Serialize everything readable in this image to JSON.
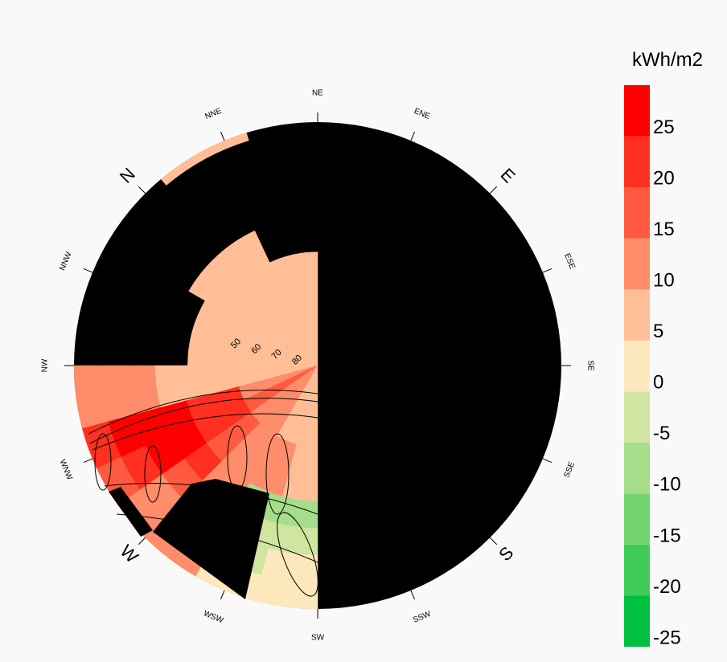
{
  "chart_data": {
    "type": "polar_heatmap",
    "legend_title": "kWh/m2",
    "colorbar": {
      "bins": [
        -25,
        -20,
        -15,
        -10,
        -5,
        0,
        5,
        10,
        15,
        20,
        25,
        30
      ],
      "colors": [
        "#00c040",
        "#3fcb55",
        "#72d46e",
        "#a6dd8a",
        "#cfe5a0",
        "#fde8bd",
        "#ffbe96",
        "#ff8c6a",
        "#ff5a40",
        "#ff3020",
        "#ff0000"
      ],
      "ylim": [
        -25,
        30
      ],
      "yticks": [
        -25,
        -20,
        -15,
        -10,
        -5,
        0,
        5,
        10,
        15,
        20,
        25
      ]
    },
    "directions": [
      "N",
      "NNE",
      "NE",
      "ENE",
      "E",
      "ESE",
      "SE",
      "SSE",
      "S",
      "SSW",
      "SW",
      "WSW",
      "W",
      "WNW",
      "NW",
      "NNW"
    ],
    "altitude_labels": [
      50,
      60,
      70,
      80
    ],
    "cells": [
      {
        "az": [
          300,
          315
        ],
        "alt": [
          0,
          10
        ],
        "value": 10
      },
      {
        "az": [
          300,
          315
        ],
        "alt": [
          10,
          20
        ],
        "value": 10
      },
      {
        "az": [
          300,
          315
        ],
        "alt": [
          20,
          30
        ],
        "value": 12
      },
      {
        "az": [
          300,
          315
        ],
        "alt": [
          30,
          40
        ],
        "value": 8
      },
      {
        "az": [
          300,
          315
        ],
        "alt": [
          40,
          60
        ],
        "value": 7
      },
      {
        "az": [
          300,
          315
        ],
        "alt": [
          60,
          90
        ],
        "value": 7
      },
      {
        "az": [
          290,
          300
        ],
        "alt": [
          0,
          10
        ],
        "value": 22
      },
      {
        "az": [
          290,
          300
        ],
        "alt": [
          10,
          20
        ],
        "value": 27
      },
      {
        "az": [
          290,
          300
        ],
        "alt": [
          20,
          30
        ],
        "value": 27
      },
      {
        "az": [
          290,
          300
        ],
        "alt": [
          30,
          40
        ],
        "value": 25
      },
      {
        "az": [
          290,
          300
        ],
        "alt": [
          40,
          60
        ],
        "value": 21
      },
      {
        "az": [
          290,
          300
        ],
        "alt": [
          60,
          90
        ],
        "value": 14
      },
      {
        "az": [
          280,
          290
        ],
        "alt": [
          0,
          10
        ],
        "value": 16
      },
      {
        "az": [
          280,
          290
        ],
        "alt": [
          10,
          20
        ],
        "value": 22
      },
      {
        "az": [
          280,
          290
        ],
        "alt": [
          20,
          30
        ],
        "value": 28
      },
      {
        "az": [
          280,
          290
        ],
        "alt": [
          30,
          40
        ],
        "value": 27
      },
      {
        "az": [
          280,
          290
        ],
        "alt": [
          40,
          60
        ],
        "value": 23
      },
      {
        "az": [
          280,
          290
        ],
        "alt": [
          60,
          90
        ],
        "value": 16
      },
      {
        "az": [
          270,
          280
        ],
        "alt": [
          0,
          10
        ],
        "value": 12
      },
      {
        "az": [
          270,
          280
        ],
        "alt": [
          10,
          20
        ],
        "value": 14
      },
      {
        "az": [
          270,
          280
        ],
        "alt": [
          20,
          30
        ],
        "value": 18
      },
      {
        "az": [
          270,
          280
        ],
        "alt": [
          30,
          40
        ],
        "value": 22
      },
      {
        "az": [
          270,
          280
        ],
        "alt": [
          40,
          60
        ],
        "value": 19
      },
      {
        "az": [
          270,
          280
        ],
        "alt": [
          60,
          90
        ],
        "value": 13
      },
      {
        "az": [
          255,
          270
        ],
        "alt": [
          0,
          10
        ],
        "value": 10
      },
      {
        "az": [
          255,
          270
        ],
        "alt": [
          10,
          20
        ],
        "value": 10
      },
      {
        "az": [
          255,
          270
        ],
        "alt": [
          20,
          30
        ],
        "value": 12
      },
      {
        "az": [
          255,
          270
        ],
        "alt": [
          30,
          40
        ],
        "value": 14
      },
      {
        "az": [
          255,
          270
        ],
        "alt": [
          40,
          60
        ],
        "value": 14
      },
      {
        "az": [
          255,
          270
        ],
        "alt": [
          60,
          90
        ],
        "value": 10
      },
      {
        "az": [
          240,
          255
        ],
        "alt": [
          0,
          10
        ],
        "value": 3
      },
      {
        "az": [
          240,
          255
        ],
        "alt": [
          10,
          20
        ],
        "value": -3
      },
      {
        "az": [
          240,
          255
        ],
        "alt": [
          20,
          30
        ],
        "value": -5
      },
      {
        "az": [
          240,
          255
        ],
        "alt": [
          30,
          40
        ],
        "value": -8
      },
      {
        "az": [
          240,
          255
        ],
        "alt": [
          40,
          60
        ],
        "value": 12
      },
      {
        "az": [
          240,
          255
        ],
        "alt": [
          60,
          90
        ],
        "value": 8
      },
      {
        "az": [
          225,
          240
        ],
        "alt": [
          0,
          10
        ],
        "value": 2
      },
      {
        "az": [
          225,
          240
        ],
        "alt": [
          10,
          20
        ],
        "value": 2
      },
      {
        "az": [
          225,
          240
        ],
        "alt": [
          20,
          30
        ],
        "value": -4
      },
      {
        "az": [
          225,
          240
        ],
        "alt": [
          30,
          40
        ],
        "value": -10
      },
      {
        "az": [
          225,
          240
        ],
        "alt": [
          40,
          60
        ],
        "value": 6
      },
      {
        "az": [
          225,
          240
        ],
        "alt": [
          60,
          90
        ],
        "value": 7
      },
      {
        "az": [
          315,
          345
        ],
        "alt": [
          42,
          90
        ],
        "value": 7
      },
      {
        "az": [
          345,
          380
        ],
        "alt": [
          35,
          90
        ],
        "value": 7
      },
      {
        "az": [
          380,
          405
        ],
        "alt": [
          48,
          90
        ],
        "value": 7
      },
      {
        "az": [
          5,
          28
        ],
        "alt": [
          0,
          3
        ],
        "value": 6
      }
    ]
  }
}
